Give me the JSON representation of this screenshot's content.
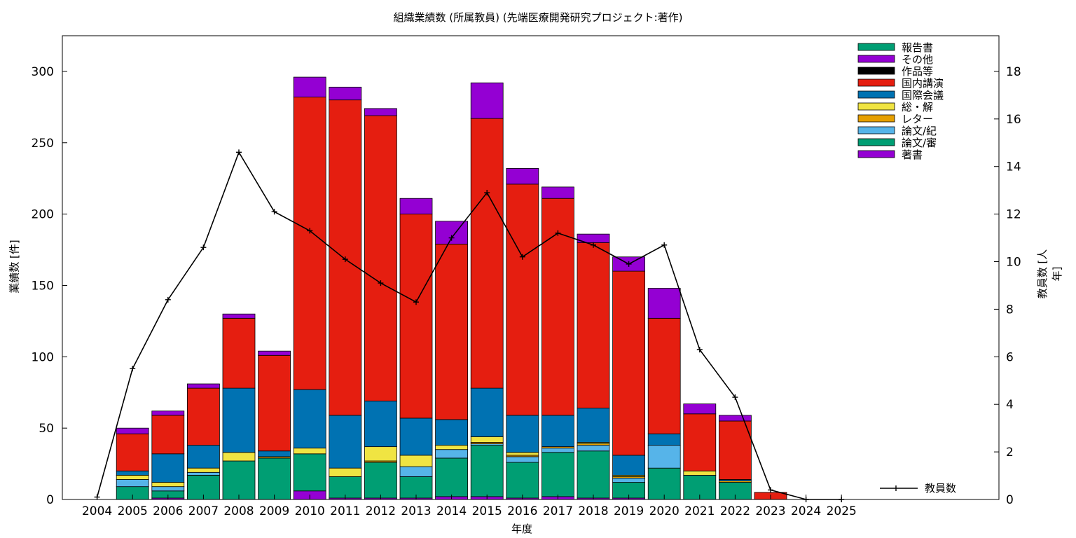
{
  "chart_data": {
    "type": "bar",
    "title": "組織業績数 (所属教員) (先端医療開発研究プロジェクト:著作)",
    "xlabel": "年度",
    "ylabel": "業績数 [件]",
    "y2label": "教員数 [人年]",
    "ylim": [
      0,
      325
    ],
    "y2lim": [
      0,
      19.5
    ],
    "yticks": [
      "0",
      "50",
      "100",
      "150",
      "200",
      "250",
      "300"
    ],
    "y2ticks": [
      "0",
      "2",
      "4",
      "6",
      "8",
      "10",
      "12",
      "14",
      "16",
      "18"
    ],
    "grid": false,
    "legend_position": "top-right",
    "categories": [
      "2004",
      "2005",
      "2006",
      "2007",
      "2008",
      "2009",
      "2010",
      "2011",
      "2012",
      "2013",
      "2014",
      "2015",
      "2016",
      "2017",
      "2018",
      "2019",
      "2020",
      "2021",
      "2022",
      "2023",
      "2024",
      "2025"
    ],
    "series": [
      {
        "name": "著書",
        "color": "#9400d3",
        "values": [
          0,
          0,
          1,
          0,
          0,
          0,
          6,
          1,
          1,
          1,
          2,
          2,
          1,
          2,
          1,
          1,
          0,
          0,
          0,
          0,
          0,
          0
        ]
      },
      {
        "name": "論文/審",
        "color": "#009e73",
        "values": [
          0,
          9,
          5,
          17,
          27,
          29,
          26,
          15,
          25,
          15,
          27,
          36,
          25,
          31,
          33,
          11,
          22,
          17,
          12,
          0,
          0,
          0
        ]
      },
      {
        "name": "論文/紀",
        "color": "#56b4e9",
        "values": [
          0,
          5,
          3,
          2,
          0,
          0,
          0,
          0,
          0,
          7,
          6,
          1,
          4,
          3,
          4,
          3,
          16,
          0,
          0,
          0,
          0,
          0
        ]
      },
      {
        "name": "レター",
        "color": "#e69f00",
        "values": [
          0,
          0,
          0,
          0,
          0,
          1,
          0,
          0,
          1,
          0,
          0,
          1,
          1,
          1,
          1,
          1,
          0,
          0,
          1,
          0,
          0,
          0
        ]
      },
      {
        "name": "総・解",
        "color": "#f0e442",
        "values": [
          0,
          3,
          3,
          3,
          6,
          0,
          4,
          6,
          10,
          8,
          3,
          4,
          2,
          0,
          1,
          1,
          0,
          3,
          0,
          0,
          0,
          0
        ]
      },
      {
        "name": "国際会議",
        "color": "#0072b2",
        "values": [
          0,
          3,
          20,
          16,
          45,
          4,
          41,
          37,
          32,
          26,
          18,
          34,
          26,
          22,
          24,
          14,
          8,
          0,
          1,
          0,
          0,
          0
        ]
      },
      {
        "name": "国内講演",
        "color": "#e51e10",
        "values": [
          0,
          26,
          27,
          40,
          49,
          67,
          205,
          221,
          200,
          143,
          123,
          189,
          162,
          152,
          116,
          129,
          81,
          40,
          41,
          5,
          0,
          0
        ]
      },
      {
        "name": "作品等",
        "color": "#000000",
        "values": [
          0,
          0,
          0,
          0,
          0,
          0,
          0,
          0,
          0,
          0,
          0,
          0,
          0,
          0,
          0,
          0,
          0,
          0,
          0,
          0,
          0,
          0
        ]
      },
      {
        "name": "その他",
        "color": "#9400d3",
        "values": [
          0,
          4,
          3,
          3,
          3,
          3,
          14,
          9,
          5,
          11,
          16,
          25,
          11,
          8,
          6,
          10,
          21,
          7,
          4,
          0,
          0,
          0
        ]
      },
      {
        "name": "報告書",
        "color": "#009e73",
        "values": [
          0,
          0,
          0,
          0,
          0,
          0,
          0,
          0,
          0,
          0,
          0,
          0,
          0,
          0,
          0,
          0,
          0,
          0,
          0,
          0,
          0,
          0
        ]
      }
    ],
    "line": {
      "name": "教員数",
      "color": "#000000",
      "axis": "right",
      "values": [
        0.1,
        5.5,
        8.4,
        10.6,
        14.6,
        12.1,
        11.3,
        10.1,
        9.1,
        8.3,
        11.0,
        12.9,
        10.2,
        11.2,
        10.7,
        9.9,
        10.7,
        6.3,
        4.3,
        0.4,
        0.0,
        0.0
      ]
    }
  }
}
